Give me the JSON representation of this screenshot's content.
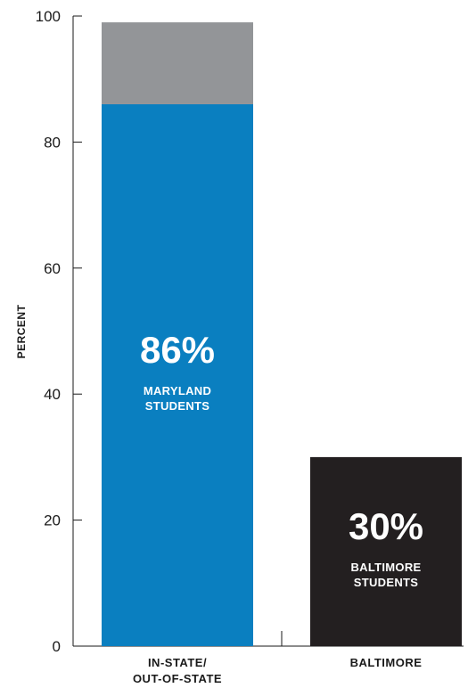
{
  "chart_data": {
    "type": "bar",
    "title": "",
    "xlabel": "",
    "ylabel": "PERCENT",
    "ylim": [
      0,
      100
    ],
    "yticks": [
      "0",
      "20",
      "40",
      "60",
      "80",
      "100"
    ],
    "categories": [
      {
        "lines": [
          "IN-STATE/",
          "OUT-OF-STATE"
        ]
      },
      {
        "lines": [
          "BALTIMORE"
        ]
      }
    ],
    "bars": [
      {
        "category_index": 0,
        "segments": [
          {
            "value": 86,
            "color": "#0a7fc0"
          },
          {
            "value": 13,
            "color": "#939598"
          }
        ],
        "label_value": "86%",
        "label_lines": [
          "MARYLAND",
          "STUDENTS"
        ]
      },
      {
        "category_index": 1,
        "segments": [
          {
            "value": 30,
            "color": "#231f20"
          }
        ],
        "label_value": "30%",
        "label_lines": [
          "BALTIMORE",
          "STUDENTS"
        ]
      }
    ],
    "grid": false,
    "legend": "none"
  }
}
